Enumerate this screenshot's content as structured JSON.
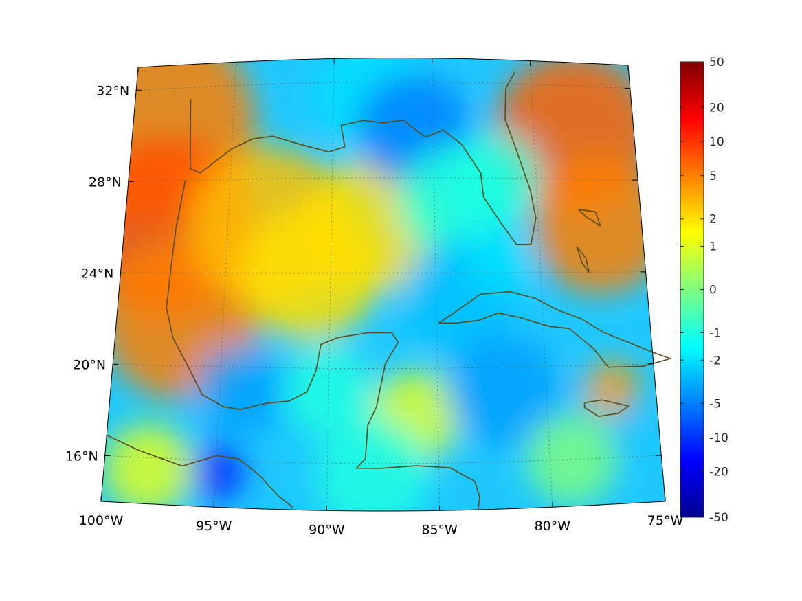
{
  "map": {
    "projection": "conic",
    "lon_range": [
      -100,
      -75
    ],
    "lat_range": [
      14,
      33
    ],
    "lon_ticks": [
      {
        "value": -100,
        "label": "100°W"
      },
      {
        "value": -95,
        "label": "95°W"
      },
      {
        "value": -90,
        "label": "90°W"
      },
      {
        "value": -85,
        "label": "85°W"
      },
      {
        "value": -80,
        "label": "80°W"
      },
      {
        "value": -75,
        "label": "75°W"
      }
    ],
    "lat_ticks": [
      {
        "value": 32,
        "label": "32°N"
      },
      {
        "value": 28,
        "label": "28°N"
      },
      {
        "value": 24,
        "label": "24°N"
      },
      {
        "value": 20,
        "label": "20°N"
      },
      {
        "value": 16,
        "label": "16°N"
      }
    ],
    "grid": true,
    "coastline_color": "#5a4a1a",
    "regions": [
      {
        "lon": -99,
        "lat": 30.5,
        "r": 4.5,
        "v": 5
      },
      {
        "lon": -98,
        "lat": 26,
        "r": 4,
        "v": 8
      },
      {
        "lon": -97,
        "lat": 22,
        "r": 3.5,
        "v": 5
      },
      {
        "lon": -93,
        "lat": 26,
        "r": 3.5,
        "v": 3
      },
      {
        "lon": -91,
        "lat": 24,
        "r": 3,
        "v": 2
      },
      {
        "lon": -88,
        "lat": 26,
        "r": 3,
        "v": 2
      },
      {
        "lon": -88,
        "lat": 31.5,
        "r": 2.5,
        "v": -2
      },
      {
        "lon": -86,
        "lat": 30,
        "r": 2.5,
        "v": -5
      },
      {
        "lon": -84,
        "lat": 27,
        "r": 2.5,
        "v": -1
      },
      {
        "lon": -84,
        "lat": 23,
        "r": 2.5,
        "v": -3
      },
      {
        "lon": -78,
        "lat": 30,
        "r": 3.5,
        "v": 7
      },
      {
        "lon": -77,
        "lat": 26,
        "r": 3,
        "v": 5
      },
      {
        "lon": -82,
        "lat": 28,
        "r": 2,
        "v": -1
      },
      {
        "lon": -94,
        "lat": 19,
        "r": 2,
        "v": -4
      },
      {
        "lon": -90,
        "lat": 19,
        "r": 2,
        "v": -1
      },
      {
        "lon": -86,
        "lat": 18,
        "r": 2,
        "v": 1
      },
      {
        "lon": -82,
        "lat": 19,
        "r": 2.5,
        "v": -4
      },
      {
        "lon": -78,
        "lat": 17,
        "r": 2,
        "v": -3
      },
      {
        "lon": -77,
        "lat": 19,
        "r": 1.2,
        "v": 4
      },
      {
        "lon": -95,
        "lat": 15.5,
        "r": 1.3,
        "v": -12
      },
      {
        "lon": -98,
        "lat": 15.5,
        "r": 2,
        "v": 1
      },
      {
        "lon": -88,
        "lat": 15.5,
        "r": 2.5,
        "v": -1
      },
      {
        "lon": -79,
        "lat": 16,
        "r": 2,
        "v": 0
      },
      {
        "lon": -82,
        "lat": 24.5,
        "r": 1.5,
        "v": -2
      }
    ]
  },
  "colorbar": {
    "tick_labels": [
      "50",
      "20",
      "10",
      "5",
      "2",
      "1",
      "0",
      "-1",
      "-2",
      "-5",
      "-10",
      "-20",
      "-50"
    ],
    "colormap": "jet",
    "low_color": "#00008f",
    "high_color": "#800000"
  }
}
